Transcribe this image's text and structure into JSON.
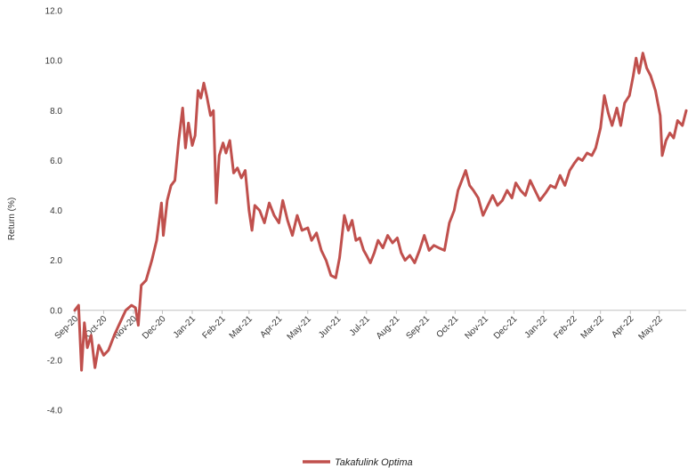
{
  "chart_data": {
    "type": "line",
    "title": "",
    "xlabel": "",
    "ylabel": "Return (%)",
    "ylim": [
      -4.0,
      12.0
    ],
    "yticks": [
      "12.0",
      "10.0",
      "8.0",
      "6.0",
      "4.0",
      "2.0",
      "0.0",
      "-2.0",
      "-4.0"
    ],
    "xticks": [
      "Sep-20",
      "Oct-20",
      "Nov-20",
      "Dec-20",
      "Jan-21",
      "Feb-21",
      "Mar-21",
      "Apr-21",
      "May-21",
      "Jun-21",
      "Jul-21",
      "Aug-21",
      "Sep-21",
      "Oct-21",
      "Nov-21",
      "Dec-21",
      "Jan-22",
      "Feb-22",
      "Mar-22",
      "Apr-22",
      "May-22"
    ],
    "grid": false,
    "legend_position": "bottom",
    "colors": {
      "series": "#c0504d",
      "axis": "#bfbfbf"
    },
    "series": [
      {
        "name": "Takafulink Optima",
        "points": [
          [
            "2020-09-01",
            0.0
          ],
          [
            "2020-09-05",
            0.2
          ],
          [
            "2020-09-08",
            -2.4
          ],
          [
            "2020-09-11",
            -0.5
          ],
          [
            "2020-09-14",
            -1.5
          ],
          [
            "2020-09-18",
            -1.0
          ],
          [
            "2020-09-22",
            -2.3
          ],
          [
            "2020-09-26",
            -1.4
          ],
          [
            "2020-10-01",
            -1.8
          ],
          [
            "2020-10-06",
            -1.6
          ],
          [
            "2020-10-12",
            -1.0
          ],
          [
            "2020-10-18",
            -0.5
          ],
          [
            "2020-10-24",
            0.0
          ],
          [
            "2020-10-30",
            0.2
          ],
          [
            "2020-11-03",
            0.1
          ],
          [
            "2020-11-06",
            -0.6
          ],
          [
            "2020-11-09",
            1.0
          ],
          [
            "2020-11-14",
            1.2
          ],
          [
            "2020-11-20",
            2.0
          ],
          [
            "2020-11-25",
            2.8
          ],
          [
            "2020-11-30",
            4.3
          ],
          [
            "2020-12-02",
            3.0
          ],
          [
            "2020-12-06",
            4.4
          ],
          [
            "2020-12-10",
            5.0
          ],
          [
            "2020-12-14",
            5.2
          ],
          [
            "2020-12-18",
            6.8
          ],
          [
            "2020-12-22",
            8.1
          ],
          [
            "2020-12-25",
            6.5
          ],
          [
            "2020-12-28",
            7.5
          ],
          [
            "2021-01-01",
            6.6
          ],
          [
            "2021-01-04",
            7.0
          ],
          [
            "2021-01-07",
            8.8
          ],
          [
            "2021-01-10",
            8.5
          ],
          [
            "2021-01-13",
            9.1
          ],
          [
            "2021-01-16",
            8.6
          ],
          [
            "2021-01-20",
            7.8
          ],
          [
            "2021-01-23",
            8.0
          ],
          [
            "2021-01-26",
            4.3
          ],
          [
            "2021-01-29",
            6.2
          ],
          [
            "2021-02-02",
            6.7
          ],
          [
            "2021-02-05",
            6.3
          ],
          [
            "2021-02-09",
            6.8
          ],
          [
            "2021-02-13",
            5.5
          ],
          [
            "2021-02-17",
            5.7
          ],
          [
            "2021-02-21",
            5.3
          ],
          [
            "2021-02-25",
            5.6
          ],
          [
            "2021-03-01",
            4.0
          ],
          [
            "2021-03-04",
            3.2
          ],
          [
            "2021-03-07",
            4.2
          ],
          [
            "2021-03-12",
            4.0
          ],
          [
            "2021-03-17",
            3.5
          ],
          [
            "2021-03-22",
            4.3
          ],
          [
            "2021-03-27",
            3.8
          ],
          [
            "2021-04-01",
            3.5
          ],
          [
            "2021-04-05",
            4.4
          ],
          [
            "2021-04-10",
            3.6
          ],
          [
            "2021-04-15",
            3.0
          ],
          [
            "2021-04-20",
            3.8
          ],
          [
            "2021-04-25",
            3.2
          ],
          [
            "2021-05-01",
            3.3
          ],
          [
            "2021-05-05",
            2.8
          ],
          [
            "2021-05-10",
            3.1
          ],
          [
            "2021-05-15",
            2.4
          ],
          [
            "2021-05-20",
            2.0
          ],
          [
            "2021-05-25",
            1.4
          ],
          [
            "2021-05-30",
            1.3
          ],
          [
            "2021-06-03",
            2.1
          ],
          [
            "2021-06-08",
            3.8
          ],
          [
            "2021-06-12",
            3.2
          ],
          [
            "2021-06-16",
            3.6
          ],
          [
            "2021-06-20",
            2.8
          ],
          [
            "2021-06-24",
            2.9
          ],
          [
            "2021-06-28",
            2.4
          ],
          [
            "2021-07-01",
            2.2
          ],
          [
            "2021-07-05",
            1.9
          ],
          [
            "2021-07-09",
            2.3
          ],
          [
            "2021-07-13",
            2.8
          ],
          [
            "2021-07-18",
            2.5
          ],
          [
            "2021-07-23",
            3.0
          ],
          [
            "2021-07-28",
            2.7
          ],
          [
            "2021-08-02",
            2.9
          ],
          [
            "2021-08-06",
            2.3
          ],
          [
            "2021-08-10",
            2.0
          ],
          [
            "2021-08-15",
            2.2
          ],
          [
            "2021-08-20",
            1.9
          ],
          [
            "2021-08-25",
            2.4
          ],
          [
            "2021-08-30",
            3.0
          ],
          [
            "2021-09-04",
            2.4
          ],
          [
            "2021-09-09",
            2.6
          ],
          [
            "2021-09-14",
            2.5
          ],
          [
            "2021-09-20",
            2.4
          ],
          [
            "2021-09-25",
            3.5
          ],
          [
            "2021-09-30",
            4.0
          ],
          [
            "2021-10-04",
            4.8
          ],
          [
            "2021-10-08",
            5.2
          ],
          [
            "2021-10-12",
            5.6
          ],
          [
            "2021-10-16",
            5.0
          ],
          [
            "2021-10-20",
            4.8
          ],
          [
            "2021-10-25",
            4.5
          ],
          [
            "2021-10-30",
            3.8
          ],
          [
            "2021-11-04",
            4.2
          ],
          [
            "2021-11-09",
            4.6
          ],
          [
            "2021-11-14",
            4.2
          ],
          [
            "2021-11-19",
            4.4
          ],
          [
            "2021-11-24",
            4.8
          ],
          [
            "2021-11-29",
            4.5
          ],
          [
            "2021-12-03",
            5.1
          ],
          [
            "2021-12-08",
            4.8
          ],
          [
            "2021-12-13",
            4.6
          ],
          [
            "2021-12-18",
            5.2
          ],
          [
            "2021-12-23",
            4.8
          ],
          [
            "2021-12-28",
            4.4
          ],
          [
            "2022-01-03",
            4.7
          ],
          [
            "2022-01-08",
            5.0
          ],
          [
            "2022-01-13",
            4.9
          ],
          [
            "2022-01-18",
            5.4
          ],
          [
            "2022-01-23",
            5.0
          ],
          [
            "2022-01-28",
            5.6
          ],
          [
            "2022-02-02",
            5.9
          ],
          [
            "2022-02-06",
            6.1
          ],
          [
            "2022-02-10",
            6.0
          ],
          [
            "2022-02-15",
            6.3
          ],
          [
            "2022-02-20",
            6.2
          ],
          [
            "2022-02-24",
            6.5
          ],
          [
            "2022-03-01",
            7.3
          ],
          [
            "2022-03-05",
            8.6
          ],
          [
            "2022-03-09",
            7.9
          ],
          [
            "2022-03-13",
            7.4
          ],
          [
            "2022-03-18",
            8.1
          ],
          [
            "2022-03-22",
            7.4
          ],
          [
            "2022-03-26",
            8.3
          ],
          [
            "2022-03-31",
            8.6
          ],
          [
            "2022-04-04",
            9.4
          ],
          [
            "2022-04-07",
            10.1
          ],
          [
            "2022-04-10",
            9.5
          ],
          [
            "2022-04-14",
            10.3
          ],
          [
            "2022-04-18",
            9.7
          ],
          [
            "2022-04-22",
            9.4
          ],
          [
            "2022-04-27",
            8.8
          ],
          [
            "2022-05-02",
            7.8
          ],
          [
            "2022-05-04",
            6.2
          ],
          [
            "2022-05-08",
            6.8
          ],
          [
            "2022-05-12",
            7.1
          ],
          [
            "2022-05-16",
            6.9
          ],
          [
            "2022-05-20",
            7.6
          ],
          [
            "2022-05-25",
            7.4
          ],
          [
            "2022-05-29",
            8.0
          ]
        ]
      }
    ]
  }
}
